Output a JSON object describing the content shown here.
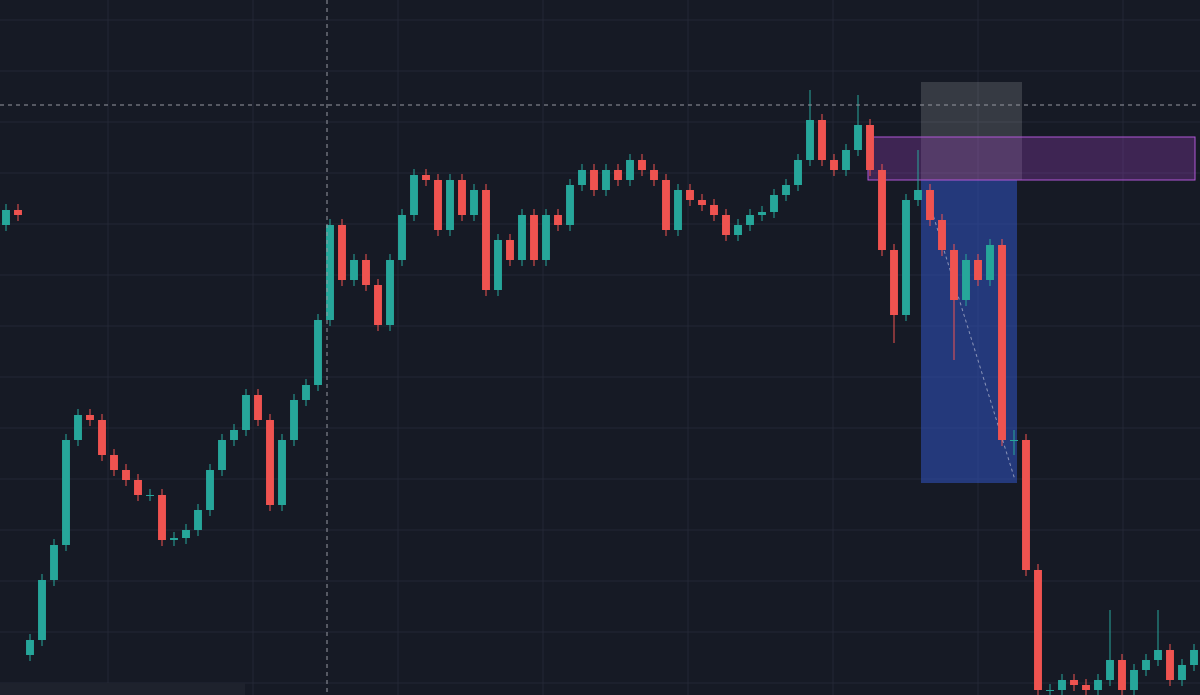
{
  "chart_data": {
    "type": "candlestick",
    "up_color": "#26a69a",
    "down_color": "#ef5350",
    "ylim": [
      0,
      695
    ],
    "candles": [
      [
        470,
        491,
        464,
        485
      ],
      [
        485,
        491,
        474,
        480
      ],
      [
        40,
        61,
        34,
        55
      ],
      [
        55,
        121,
        49,
        115
      ],
      [
        115,
        156,
        109,
        150
      ],
      [
        150,
        261,
        144,
        255
      ],
      [
        255,
        286,
        249,
        280
      ],
      [
        280,
        286,
        269,
        275
      ],
      [
        275,
        281,
        234,
        240
      ],
      [
        240,
        246,
        219,
        225
      ],
      [
        225,
        231,
        209,
        215
      ],
      [
        215,
        221,
        194,
        200
      ],
      [
        200,
        206,
        194,
        200
      ],
      [
        200,
        206,
        149,
        155
      ],
      [
        155,
        163,
        149,
        157
      ],
      [
        157,
        171,
        151,
        165
      ],
      [
        165,
        191,
        159,
        185
      ],
      [
        185,
        231,
        179,
        225
      ],
      [
        225,
        261,
        219,
        255
      ],
      [
        255,
        271,
        249,
        265
      ],
      [
        265,
        306,
        259,
        300
      ],
      [
        300,
        306,
        269,
        275
      ],
      [
        275,
        281,
        184,
        190
      ],
      [
        190,
        261,
        184,
        255
      ],
      [
        255,
        301,
        249,
        295
      ],
      [
        295,
        316,
        289,
        310
      ],
      [
        310,
        381,
        304,
        375
      ],
      [
        375,
        476,
        369,
        470
      ],
      [
        470,
        476,
        409,
        415
      ],
      [
        415,
        441,
        409,
        435
      ],
      [
        435,
        441,
        404,
        410
      ],
      [
        410,
        416,
        364,
        370
      ],
      [
        370,
        441,
        364,
        435
      ],
      [
        435,
        486,
        429,
        480
      ],
      [
        480,
        526,
        474,
        520
      ],
      [
        520,
        526,
        509,
        515
      ],
      [
        515,
        521,
        459,
        465
      ],
      [
        465,
        521,
        459,
        515
      ],
      [
        515,
        521,
        474,
        480
      ],
      [
        480,
        511,
        474,
        505
      ],
      [
        505,
        511,
        399,
        405
      ],
      [
        405,
        461,
        399,
        455
      ],
      [
        455,
        461,
        429,
        435
      ],
      [
        435,
        486,
        429,
        480
      ],
      [
        480,
        486,
        429,
        435
      ],
      [
        435,
        486,
        429,
        480
      ],
      [
        480,
        486,
        464,
        470
      ],
      [
        470,
        516,
        464,
        510
      ],
      [
        510,
        531,
        504,
        525
      ],
      [
        525,
        531,
        499,
        505
      ],
      [
        505,
        531,
        499,
        525
      ],
      [
        525,
        531,
        509,
        515
      ],
      [
        515,
        541,
        509,
        535
      ],
      [
        535,
        541,
        519,
        525
      ],
      [
        525,
        531,
        509,
        515
      ],
      [
        515,
        521,
        459,
        465
      ],
      [
        465,
        511,
        459,
        505
      ],
      [
        505,
        511,
        489,
        495
      ],
      [
        495,
        501,
        484,
        490
      ],
      [
        490,
        496,
        474,
        480
      ],
      [
        480,
        486,
        454,
        460
      ],
      [
        460,
        476,
        454,
        470
      ],
      [
        470,
        486,
        464,
        480
      ],
      [
        480,
        489,
        474,
        483
      ],
      [
        483,
        506,
        477,
        500
      ],
      [
        500,
        516,
        494,
        510
      ],
      [
        510,
        541,
        504,
        535
      ],
      [
        535,
        605,
        529,
        575
      ],
      [
        575,
        581,
        529,
        535
      ],
      [
        535,
        541,
        519,
        525
      ],
      [
        525,
        551,
        519,
        545
      ],
      [
        545,
        600,
        539,
        570
      ],
      [
        570,
        576,
        519,
        525
      ],
      [
        525,
        531,
        439,
        445
      ],
      [
        445,
        451,
        352,
        380
      ],
      [
        380,
        501,
        374,
        495
      ],
      [
        495,
        545,
        489,
        505
      ],
      [
        505,
        511,
        469,
        475
      ],
      [
        475,
        481,
        439,
        445
      ],
      [
        445,
        451,
        335,
        395
      ],
      [
        395,
        441,
        389,
        435
      ],
      [
        435,
        441,
        409,
        415
      ],
      [
        415,
        456,
        409,
        450
      ],
      [
        450,
        456,
        249,
        255
      ],
      [
        255,
        265,
        240,
        255
      ],
      [
        255,
        261,
        119,
        125
      ],
      [
        125,
        131,
        -1,
        5
      ],
      [
        5,
        11,
        -1,
        5
      ],
      [
        5,
        21,
        -1,
        15
      ],
      [
        15,
        21,
        4,
        10
      ],
      [
        10,
        16,
        -1,
        5
      ],
      [
        5,
        21,
        -1,
        15
      ],
      [
        15,
        85,
        9,
        35
      ],
      [
        35,
        41,
        -1,
        5
      ],
      [
        5,
        31,
        -1,
        25
      ],
      [
        25,
        41,
        19,
        35
      ],
      [
        35,
        85,
        29,
        45
      ],
      [
        45,
        51,
        9,
        15
      ],
      [
        15,
        36,
        9,
        30
      ],
      [
        30,
        51,
        24,
        45
      ]
    ]
  }
}
